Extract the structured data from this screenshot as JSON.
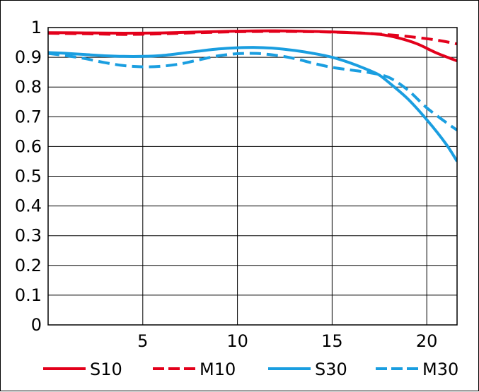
{
  "chart_data": {
    "type": "line",
    "title": "",
    "xlabel": "",
    "ylabel": "",
    "xlim": [
      0,
      21.6
    ],
    "ylim": [
      0,
      1
    ],
    "grid": true,
    "legend_position": "bottom",
    "x_ticks": [
      5,
      10,
      15,
      20
    ],
    "x_tick_labels": [
      "5",
      "10",
      "15",
      "20"
    ],
    "y_ticks": [
      0,
      0.1,
      0.2,
      0.3,
      0.4,
      0.5,
      0.6,
      0.7,
      0.8,
      0.9,
      1
    ],
    "y_tick_labels": [
      "0",
      "0.1",
      "0.2",
      "0.3",
      "0.4",
      "0.5",
      "0.6",
      "0.7",
      "0.8",
      "0.9",
      "1"
    ],
    "series": [
      {
        "name": "S10",
        "color": "#e3001b",
        "dash": "solid",
        "points": [
          [
            0,
            0.983
          ],
          [
            2,
            0.982
          ],
          [
            4,
            0.981
          ],
          [
            6,
            0.982
          ],
          [
            8,
            0.985
          ],
          [
            10,
            0.988
          ],
          [
            12,
            0.989
          ],
          [
            14,
            0.987
          ],
          [
            16,
            0.983
          ],
          [
            17.5,
            0.977
          ],
          [
            18.5,
            0.965
          ],
          [
            19.5,
            0.945
          ],
          [
            20.5,
            0.915
          ],
          [
            21.6,
            0.888
          ]
        ]
      },
      {
        "name": "M10",
        "color": "#e3001b",
        "dash": "dashed",
        "points": [
          [
            0,
            0.981
          ],
          [
            2,
            0.979
          ],
          [
            4,
            0.977
          ],
          [
            6,
            0.979
          ],
          [
            8,
            0.983
          ],
          [
            10,
            0.986
          ],
          [
            12,
            0.987
          ],
          [
            14,
            0.986
          ],
          [
            16,
            0.983
          ],
          [
            17.5,
            0.978
          ],
          [
            19,
            0.97
          ],
          [
            20.5,
            0.958
          ],
          [
            21.6,
            0.945
          ]
        ]
      },
      {
        "name": "S30",
        "color": "#1a9ee0",
        "dash": "solid",
        "points": [
          [
            0,
            0.916
          ],
          [
            1,
            0.913
          ],
          [
            2,
            0.909
          ],
          [
            3,
            0.905
          ],
          [
            4,
            0.903
          ],
          [
            5,
            0.903
          ],
          [
            6,
            0.906
          ],
          [
            7,
            0.913
          ],
          [
            8,
            0.921
          ],
          [
            9,
            0.928
          ],
          [
            10,
            0.932
          ],
          [
            11,
            0.933
          ],
          [
            12,
            0.93
          ],
          [
            13,
            0.923
          ],
          [
            14,
            0.913
          ],
          [
            15,
            0.9
          ],
          [
            16,
            0.88
          ],
          [
            17,
            0.855
          ],
          [
            17.5,
            0.84
          ],
          [
            18,
            0.815
          ],
          [
            19,
            0.76
          ],
          [
            20,
            0.69
          ],
          [
            21,
            0.61
          ],
          [
            21.6,
            0.55
          ]
        ]
      },
      {
        "name": "M30",
        "color": "#1a9ee0",
        "dash": "dashed",
        "points": [
          [
            0,
            0.913
          ],
          [
            1,
            0.905
          ],
          [
            2,
            0.895
          ],
          [
            3,
            0.882
          ],
          [
            4,
            0.872
          ],
          [
            5,
            0.868
          ],
          [
            6,
            0.87
          ],
          [
            7,
            0.878
          ],
          [
            8,
            0.892
          ],
          [
            9,
            0.905
          ],
          [
            10,
            0.912
          ],
          [
            11,
            0.913
          ],
          [
            12,
            0.907
          ],
          [
            13,
            0.896
          ],
          [
            14,
            0.88
          ],
          [
            15,
            0.866
          ],
          [
            16,
            0.857
          ],
          [
            17,
            0.848
          ],
          [
            18,
            0.832
          ],
          [
            19,
            0.79
          ],
          [
            20,
            0.73
          ],
          [
            21,
            0.682
          ],
          [
            21.6,
            0.655
          ]
        ]
      }
    ]
  }
}
